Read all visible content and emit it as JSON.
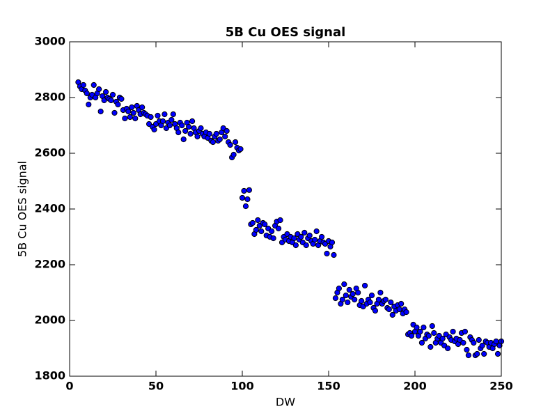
{
  "chart_data": {
    "type": "scatter",
    "title": "5B Cu OES signal",
    "x_label": "DW",
    "y_label": "5B Cu OES signal",
    "color": "#0000ff",
    "edgecolor": "#000000",
    "xlim": [
      0,
      250
    ],
    "ylim": [
      1800,
      3000
    ],
    "xticks": [
      0,
      50,
      100,
      150,
      200,
      250
    ],
    "yticks": [
      1800,
      2000,
      2200,
      2400,
      2600,
      2800,
      3000
    ],
    "grid": false,
    "x": [
      5,
      6,
      7,
      8,
      9,
      10,
      11,
      12,
      13,
      14,
      15,
      16,
      17,
      18,
      19,
      20,
      21,
      22,
      23,
      24,
      25,
      26,
      27,
      28,
      29,
      30,
      31,
      32,
      33,
      34,
      35,
      36,
      37,
      38,
      39,
      40,
      41,
      42,
      43,
      44,
      45,
      46,
      47,
      48,
      49,
      50,
      51,
      52,
      53,
      54,
      55,
      56,
      57,
      58,
      59,
      60,
      61,
      62,
      63,
      64,
      65,
      66,
      67,
      68,
      69,
      70,
      71,
      72,
      73,
      74,
      75,
      76,
      77,
      78,
      79,
      80,
      81,
      82,
      83,
      84,
      85,
      86,
      87,
      88,
      89,
      90,
      91,
      92,
      93,
      94,
      95,
      96,
      97,
      98,
      99,
      100,
      101,
      102,
      103,
      104,
      105,
      106,
      107,
      108,
      109,
      110,
      111,
      112,
      113,
      114,
      115,
      116,
      117,
      118,
      119,
      120,
      121,
      122,
      123,
      124,
      125,
      126,
      127,
      128,
      129,
      130,
      131,
      132,
      133,
      134,
      135,
      136,
      137,
      138,
      139,
      140,
      141,
      142,
      143,
      144,
      145,
      146,
      147,
      148,
      149,
      150,
      151,
      152,
      153,
      154,
      155,
      156,
      157,
      158,
      159,
      160,
      161,
      162,
      163,
      164,
      165,
      166,
      167,
      168,
      169,
      170,
      171,
      172,
      173,
      174,
      175,
      176,
      177,
      178,
      179,
      180,
      181,
      182,
      183,
      184,
      185,
      186,
      187,
      188,
      189,
      190,
      191,
      192,
      193,
      194,
      195,
      196,
      197,
      198,
      199,
      200,
      201,
      202,
      203,
      204,
      205,
      206,
      207,
      208,
      209,
      210,
      211,
      212,
      213,
      214,
      215,
      216,
      217,
      218,
      219,
      220,
      221,
      222,
      223,
      224,
      225,
      226,
      227,
      228,
      229,
      230,
      231,
      232,
      233,
      234,
      235,
      236,
      237,
      238,
      239,
      240,
      241,
      242,
      243,
      244,
      245,
      246,
      247,
      248,
      249,
      250
    ],
    "y": [
      2855,
      2840,
      2830,
      2845,
      2825,
      2815,
      2775,
      2800,
      2810,
      2845,
      2800,
      2815,
      2830,
      2750,
      2805,
      2790,
      2820,
      2800,
      2795,
      2790,
      2810,
      2745,
      2785,
      2775,
      2800,
      2795,
      2755,
      2725,
      2760,
      2750,
      2730,
      2765,
      2745,
      2725,
      2770,
      2755,
      2740,
      2765,
      2745,
      2740,
      2735,
      2705,
      2730,
      2695,
      2685,
      2705,
      2735,
      2715,
      2700,
      2715,
      2740,
      2690,
      2710,
      2700,
      2720,
      2740,
      2705,
      2690,
      2675,
      2710,
      2700,
      2650,
      2680,
      2710,
      2695,
      2670,
      2715,
      2690,
      2675,
      2660,
      2680,
      2690,
      2670,
      2660,
      2675,
      2655,
      2670,
      2645,
      2640,
      2660,
      2670,
      2645,
      2650,
      2675,
      2690,
      2660,
      2680,
      2640,
      2630,
      2585,
      2595,
      2640,
      2620,
      2610,
      2615,
      2440,
      2465,
      2410,
      2435,
      2468,
      2345,
      2350,
      2310,
      2325,
      2360,
      2340,
      2320,
      2350,
      2345,
      2305,
      2330,
      2300,
      2320,
      2295,
      2340,
      2355,
      2330,
      2360,
      2280,
      2300,
      2290,
      2310,
      2285,
      2300,
      2280,
      2295,
      2270,
      2310,
      2290,
      2300,
      2280,
      2315,
      2270,
      2295,
      2305,
      2285,
      2275,
      2290,
      2320,
      2270,
      2285,
      2300,
      2280,
      2275,
      2240,
      2285,
      2265,
      2280,
      2235,
      2080,
      2100,
      2115,
      2060,
      2075,
      2130,
      2090,
      2065,
      2110,
      2085,
      2095,
      2075,
      2115,
      2100,
      2055,
      2070,
      2050,
      2125,
      2060,
      2075,
      2065,
      2090,
      2045,
      2035,
      2060,
      2075,
      2100,
      2060,
      2070,
      2075,
      2045,
      2040,
      2065,
      2020,
      2050,
      2035,
      2055,
      2040,
      2060,
      2025,
      2040,
      2030,
      1950,
      1955,
      1945,
      1985,
      1960,
      1975,
      1945,
      1960,
      1920,
      1975,
      1935,
      1950,
      1945,
      1905,
      1980,
      1955,
      1920,
      1935,
      1945,
      1920,
      1935,
      1910,
      1950,
      1900,
      1940,
      1930,
      1960,
      1925,
      1935,
      1915,
      1930,
      1955,
      1920,
      1960,
      1895,
      1875,
      1940,
      1930,
      1920,
      1875,
      1880,
      1930,
      1900,
      1910,
      1880,
      1925,
      1920,
      1905,
      1920,
      1900,
      1915,
      1925,
      1880,
      1910,
      1925
    ]
  }
}
